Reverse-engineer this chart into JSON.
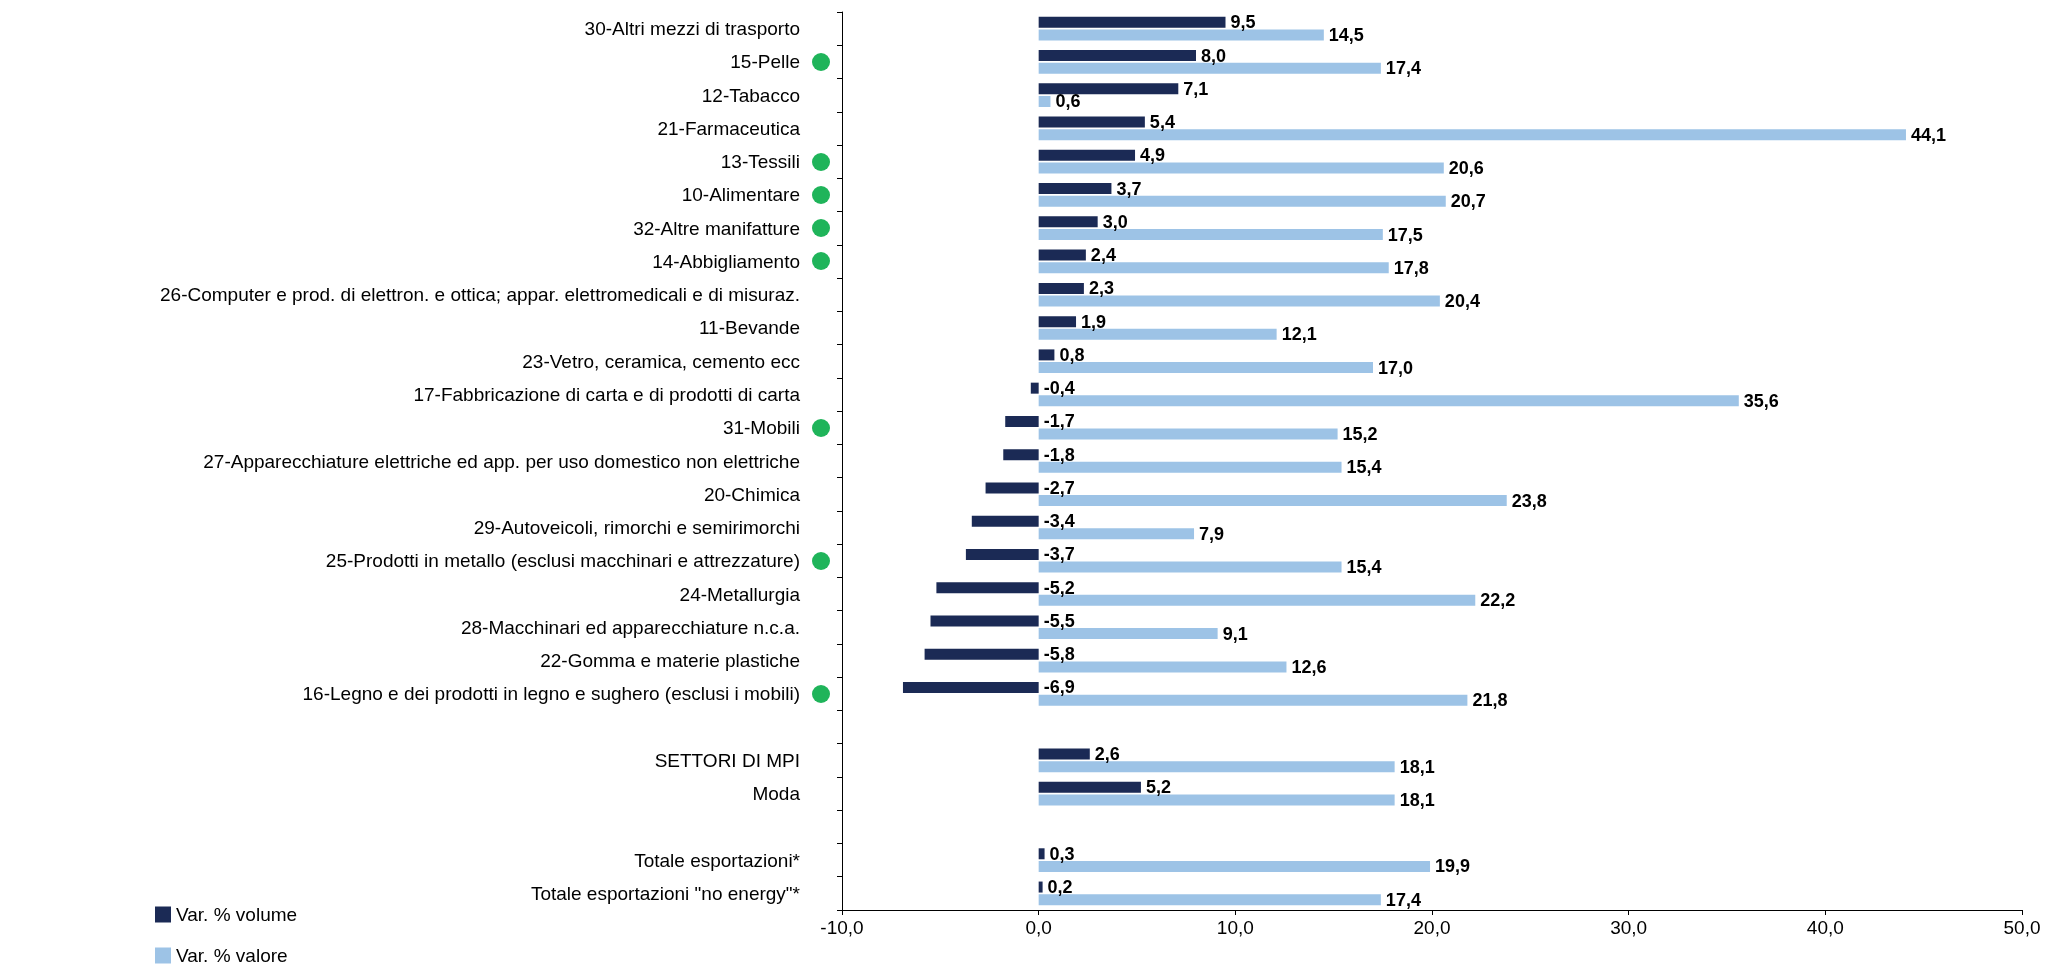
{
  "chart_data": {
    "type": "bar",
    "orientation": "horizontal",
    "legend": "bottom left",
    "grid": false,
    "categories": [
      "30-Altri mezzi di trasporto",
      "15-Pelle",
      "12-Tabacco",
      "21-Farmaceutica",
      "13-Tessili",
      "10-Alimentare",
      "32-Altre manifatture",
      "14-Abbigliamento",
      "26-Computer e prod. di elettron. e ottica; appar. elettromedicali e di misuraz.",
      "11-Bevande",
      "23-Vetro, ceramica, cemento ecc",
      "17-Fabbricazione di carta e di prodotti di carta",
      "31-Mobili",
      "27-Apparecchiature elettriche ed app. per uso domestico non elettriche",
      "20-Chimica",
      "29-Autoveicoli, rimorchi e semirimorchi",
      "25-Prodotti in metallo (esclusi macchinari e attrezzature)",
      "24-Metallurgia",
      "28-Macchinari ed apparecchiature n.c.a.",
      "22-Gomma e materie plastiche",
      "16-Legno e dei prodotti in legno e sughero (esclusi i mobili)",
      null,
      "SETTORI DI MPI",
      "Moda",
      null,
      "Totale esportazioni*",
      "Totale esportazioni \"no energy\"*"
    ],
    "series": [
      {
        "name": "Var. % volume",
        "color": "#1b2a55",
        "values": [
          9.5,
          8.0,
          7.1,
          5.4,
          4.9,
          3.7,
          3.0,
          2.4,
          2.3,
          1.9,
          0.8,
          -0.4,
          -1.7,
          -1.8,
          -2.7,
          -3.4,
          -3.7,
          -5.2,
          -5.5,
          -5.8,
          -6.9,
          null,
          2.6,
          5.2,
          null,
          0.3,
          0.2
        ],
        "value_labels": [
          "9,5",
          "8,0",
          "7,1",
          "5,4",
          "4,9",
          "3,7",
          "3,0",
          "2,4",
          "2,3",
          "1,9",
          "0,8",
          "-0,4",
          "-1,7",
          "-1,8",
          "-2,7",
          "-3,4",
          "-3,7",
          "-5,2",
          "-5,5",
          "-5,8",
          "-6,9",
          null,
          "2,6",
          "5,2",
          null,
          "0,3",
          "0,2"
        ]
      },
      {
        "name": "Var. % valore",
        "color": "#9dc3e6",
        "values": [
          14.5,
          17.4,
          0.6,
          44.1,
          20.6,
          20.7,
          17.5,
          17.8,
          20.4,
          12.1,
          17.0,
          35.6,
          15.2,
          15.4,
          23.8,
          7.9,
          15.4,
          22.2,
          9.1,
          12.6,
          21.8,
          null,
          18.1,
          18.1,
          null,
          19.9,
          17.4
        ],
        "value_labels": [
          "14,5",
          "17,4",
          "0,6",
          "44,1",
          "20,6",
          "20,7",
          "17,5",
          "17,8",
          "20,4",
          "12,1",
          "17,0",
          "35,6",
          "15,2",
          "15,4",
          "23,8",
          "7,9",
          "15,4",
          "22,2",
          "9,1",
          "12,6",
          "21,8",
          null,
          "18,1",
          "18,1",
          null,
          "19,9",
          "17,4"
        ]
      }
    ],
    "xlim": [
      -10,
      50
    ],
    "xticks": [
      {
        "value": -10,
        "label": "-10,0"
      },
      {
        "value": 0,
        "label": "0,0"
      },
      {
        "value": 10,
        "label": "10,0"
      },
      {
        "value": 20,
        "label": "20,0"
      },
      {
        "value": 30,
        "label": "30,0"
      },
      {
        "value": 40,
        "label": "40,0"
      },
      {
        "value": 50,
        "label": "50,0"
      }
    ]
  }
}
